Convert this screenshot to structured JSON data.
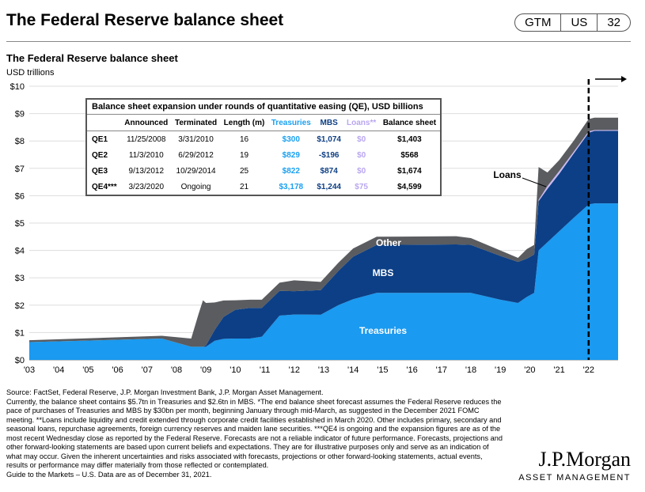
{
  "header": {
    "title": "The Federal Reserve balance sheet",
    "badges": [
      "GTM",
      "US",
      "32"
    ]
  },
  "subtitle": "The Federal Reserve balance sheet",
  "unit": "USD trillions",
  "colors": {
    "treasuries": "#1a9af0",
    "mbs": "#0c3f86",
    "loans": "#c9b8f5",
    "other": "#5a5c60"
  },
  "table": {
    "caption": "Balance sheet expansion under rounds of quantitative easing (QE), USD billions",
    "headers": [
      "",
      "Announced",
      "Terminated",
      "Length (m)",
      "Treasuries",
      "MBS",
      "Loans**",
      "Balance sheet"
    ],
    "rows": [
      [
        "QE1",
        "11/25/2008",
        "3/31/2010",
        "16",
        "$300",
        "$1,074",
        "$0",
        "$1,403"
      ],
      [
        "QE2",
        "11/3/2010",
        "6/29/2012",
        "19",
        "$829",
        "-$196",
        "$0",
        "$568"
      ],
      [
        "QE3",
        "9/13/2012",
        "10/29/2014",
        "25",
        "$822",
        "$874",
        "$0",
        "$1,674"
      ],
      [
        "QE4***",
        "3/23/2020",
        "Ongoing",
        "21",
        "$3,178",
        "$1,244",
        "$75",
        "$4,599"
      ]
    ]
  },
  "chart_data": {
    "type": "area",
    "title": "The Federal Reserve balance sheet",
    "ylabel": "USD trillions",
    "ylim": [
      0,
      10
    ],
    "xlim": [
      2003,
      2023
    ],
    "yticks": [
      "$0",
      "$1",
      "$2",
      "$3",
      "$4",
      "$5",
      "$6",
      "$7",
      "$8",
      "$9",
      "$10"
    ],
    "xticks": [
      "'03",
      "'04",
      "'05",
      "'06",
      "'07",
      "'08",
      "'09",
      "'10",
      "'11",
      "'12",
      "'13",
      "'14",
      "'15",
      "'16",
      "'17",
      "'18",
      "'19",
      "'20",
      "'21",
      "'22"
    ],
    "labels": {
      "treasuries": "Treasuries",
      "mbs": "MBS",
      "other": "Other",
      "loans": "Loans"
    },
    "forecast_start": 2022,
    "x": [
      2003,
      2007.5,
      2008.5,
      2008.75,
      2008.9,
      2009.0,
      2009.3,
      2009.6,
      2010.0,
      2010.5,
      2010.9,
      2011.5,
      2012.0,
      2012.9,
      2013.5,
      2014.0,
      2014.8,
      2017.5,
      2018.0,
      2019.0,
      2019.6,
      2019.9,
      2020.15,
      2020.3,
      2020.6,
      2021.0,
      2021.5,
      2022.0,
      2022.2,
      2023.0
    ],
    "series": [
      {
        "name": "Treasuries",
        "values": [
          0.65,
          0.78,
          0.48,
          0.48,
          0.48,
          0.48,
          0.7,
          0.77,
          0.78,
          0.78,
          0.85,
          1.62,
          1.66,
          1.65,
          2.0,
          2.22,
          2.45,
          2.45,
          2.45,
          2.2,
          2.08,
          2.3,
          2.45,
          4.0,
          4.3,
          4.7,
          5.2,
          5.68,
          5.72,
          5.72
        ]
      },
      {
        "name": "MBS",
        "values": [
          0,
          0,
          0,
          0,
          0,
          0.05,
          0.4,
          0.8,
          1.05,
          1.12,
          1.05,
          0.9,
          0.85,
          0.9,
          1.25,
          1.55,
          1.75,
          1.77,
          1.75,
          1.6,
          1.5,
          1.4,
          1.4,
          1.8,
          1.95,
          2.1,
          2.35,
          2.62,
          2.65,
          2.65
        ]
      },
      {
        "name": "Loans",
        "values": [
          0,
          0,
          0,
          0,
          0,
          0,
          0,
          0,
          0,
          0,
          0,
          0,
          0,
          0,
          0,
          0,
          0,
          0,
          0,
          0,
          0,
          0,
          0,
          0.05,
          0.1,
          0.1,
          0.07,
          0.05,
          0.03,
          0.03
        ]
      },
      {
        "name": "Other",
        "values": [
          0.07,
          0.1,
          0.3,
          1.2,
          1.7,
          1.55,
          1.0,
          0.6,
          0.35,
          0.3,
          0.3,
          0.3,
          0.4,
          0.3,
          0.3,
          0.3,
          0.3,
          0.3,
          0.25,
          0.2,
          0.15,
          0.35,
          0.35,
          1.2,
          0.5,
          0.4,
          0.4,
          0.45,
          0.45,
          0.45
        ]
      }
    ]
  },
  "notes": [
    "Source: FactSet, Federal Reserve, J.P. Morgan Investment Bank, J.P. Morgan Asset Management.",
    "Currently, the balance sheet contains $5.7tn in Treasuries and $2.6tn in MBS. *The end balance sheet forecast assumes the Federal Reserve reduces the pace of purchases of Treasuries and MBS by $30bn per month, beginning January through mid-March, as suggested in the December 2021 FOMC meeting. **Loans include liquidity and credit extended through corporate credit facilities established in March 2020. Other includes primary, secondary and seasonal loans, repurchase agreements, foreign currency reserves and maiden lane securities. ***QE4 is ongoing and the expansion figures are as of the most recent Wednesday close as reported by the Federal Reserve. Forecasts are not a reliable indicator of future performance. Forecasts, projections and other forward-looking statements are based upon current beliefs and expectations. They are for illustrative purposes only and serve as an indication of what may occur. Given the inherent uncertainties and risks associated with forecasts, projections or other forward-looking statements, actual events, results or performance may differ materially from those reflected or contemplated.",
    "Guide to the Markets – U.S. Data are as of December 31, 2021."
  ],
  "logo": {
    "name": "J.P.Morgan",
    "sub": "ASSET MANAGEMENT"
  }
}
